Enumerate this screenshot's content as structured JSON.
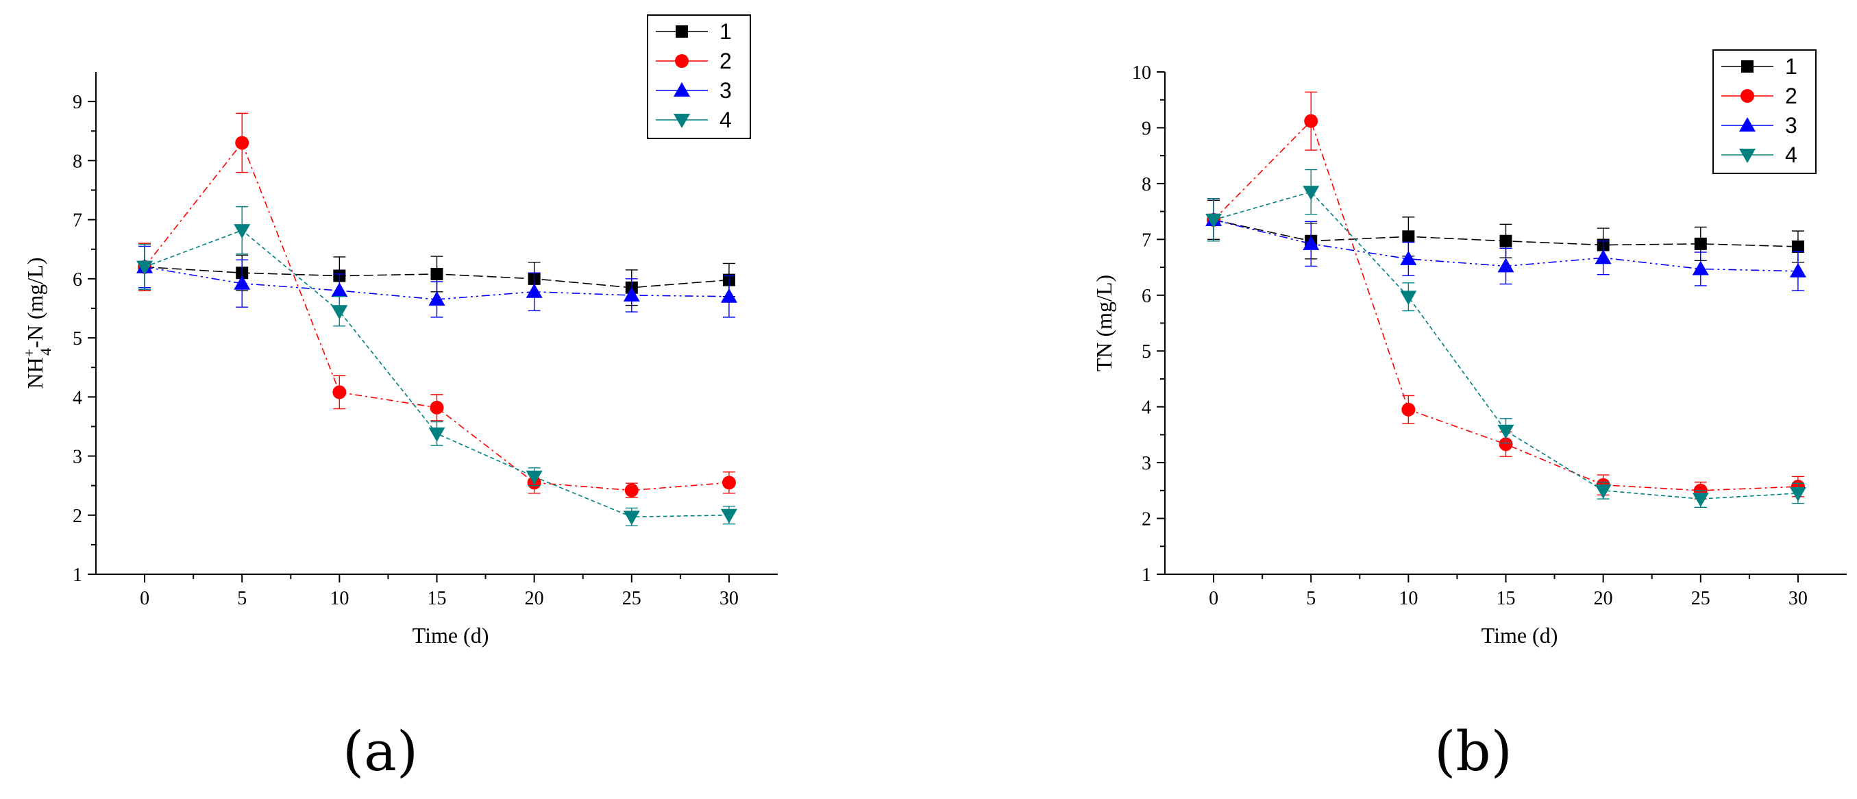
{
  "panel_labels": {
    "a": "(a)",
    "b": "(b)"
  },
  "colors": {
    "1": "#000000",
    "2": "#ff0000",
    "3": "#0000ff",
    "4": "#008080"
  },
  "chart_data": [
    {
      "id": "a",
      "type": "line",
      "title": "",
      "xlabel": "Time (d)",
      "ylabel_main": "NH",
      "ylabel_sub": "4",
      "ylabel_sup": "+",
      "ylabel_rest": "-N (mg/L)",
      "xlim": [
        -2.5,
        32.5
      ],
      "ylim": [
        1,
        9.5
      ],
      "xticks": [
        0,
        5,
        10,
        15,
        20,
        25,
        30
      ],
      "yticks": [
        1,
        2,
        3,
        4,
        5,
        6,
        7,
        8,
        9
      ],
      "x": [
        0,
        5,
        10,
        15,
        20,
        25,
        30
      ],
      "legend_position": "top-right",
      "series": [
        {
          "name": "1",
          "marker": "square",
          "values": [
            6.2,
            6.1,
            6.05,
            6.08,
            6.0,
            5.85,
            5.98
          ],
          "errors": [
            0.4,
            0.3,
            0.32,
            0.3,
            0.28,
            0.3,
            0.28
          ]
        },
        {
          "name": "2",
          "marker": "circle",
          "values": [
            6.2,
            8.3,
            4.08,
            3.82,
            2.55,
            2.42,
            2.55
          ],
          "errors": [
            0.4,
            0.5,
            0.28,
            0.22,
            0.18,
            0.12,
            0.18
          ]
        },
        {
          "name": "3",
          "marker": "triangle",
          "values": [
            6.2,
            5.92,
            5.8,
            5.65,
            5.78,
            5.72,
            5.7
          ],
          "errors": [
            0.35,
            0.4,
            0.28,
            0.3,
            0.32,
            0.28,
            0.35
          ]
        },
        {
          "name": "4",
          "marker": "triangle-down",
          "values": [
            6.2,
            6.82,
            5.45,
            3.38,
            2.65,
            1.97,
            2.0
          ],
          "errors": [
            0.38,
            0.4,
            0.25,
            0.2,
            0.15,
            0.15,
            0.15
          ]
        }
      ]
    },
    {
      "id": "b",
      "type": "line",
      "title": "",
      "xlabel": "Time (d)",
      "ylabel_main": "TN (mg/L)",
      "xlim": [
        -2.5,
        32.5
      ],
      "ylim": [
        1,
        10
      ],
      "xticks": [
        0,
        5,
        10,
        15,
        20,
        25,
        30
      ],
      "yticks": [
        1,
        2,
        3,
        4,
        5,
        6,
        7,
        8,
        9,
        10
      ],
      "x": [
        0,
        5,
        10,
        15,
        20,
        25,
        30
      ],
      "legend_position": "top-right",
      "series": [
        {
          "name": "1",
          "marker": "square",
          "values": [
            7.35,
            6.97,
            7.05,
            6.97,
            6.9,
            6.92,
            6.87
          ],
          "errors": [
            0.35,
            0.32,
            0.35,
            0.3,
            0.3,
            0.3,
            0.28
          ]
        },
        {
          "name": "2",
          "marker": "circle",
          "values": [
            7.35,
            9.12,
            3.95,
            3.33,
            2.6,
            2.5,
            2.57
          ],
          "errors": [
            0.38,
            0.52,
            0.25,
            0.22,
            0.18,
            0.15,
            0.18
          ]
        },
        {
          "name": "3",
          "marker": "triangle",
          "values": [
            7.35,
            6.92,
            6.65,
            6.52,
            6.67,
            6.47,
            6.43
          ],
          "errors": [
            0.38,
            0.4,
            0.3,
            0.32,
            0.3,
            0.3,
            0.35
          ]
        },
        {
          "name": "4",
          "marker": "triangle-down",
          "values": [
            7.35,
            7.85,
            5.97,
            3.57,
            2.5,
            2.35,
            2.45
          ],
          "errors": [
            0.38,
            0.4,
            0.25,
            0.22,
            0.15,
            0.15,
            0.18
          ]
        }
      ]
    }
  ]
}
